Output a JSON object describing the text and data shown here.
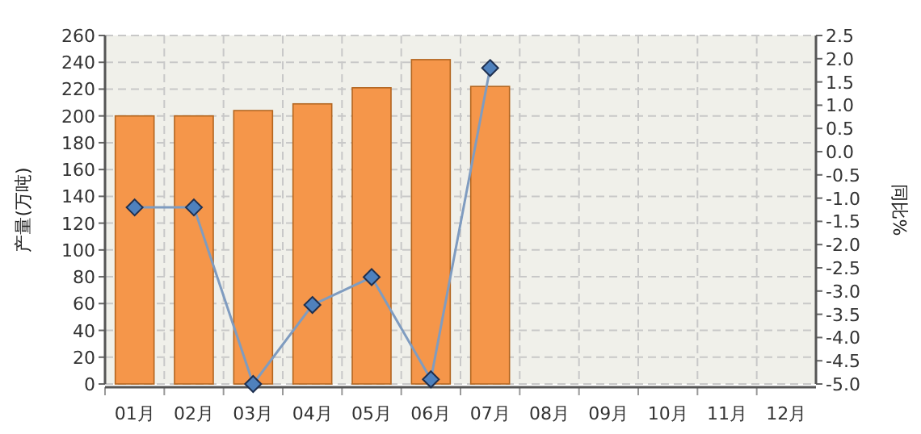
{
  "chart_data": {
    "type": "bar",
    "ylabel": "产量(万吨)",
    "y2label": "同比%",
    "categories": [
      "01月",
      "02月",
      "03月",
      "04月",
      "05月",
      "06月",
      "07月",
      "08月",
      "09月",
      "10月",
      "11月",
      "12月"
    ],
    "series": [
      {
        "color": "#f5964a",
        "values": [
          200,
          200,
          204,
          209,
          221,
          242,
          222,
          null,
          null,
          null,
          null,
          null
        ]
      },
      {
        "type": "line",
        "axis": "y2",
        "color": "#7f9cc0",
        "marker": "diamond",
        "values": [
          -1.2,
          -1.2,
          -5.0,
          -3.3,
          -2.7,
          -4.9,
          1.8,
          null,
          null,
          null,
          null,
          null
        ]
      }
    ],
    "ylim": [
      0,
      260
    ],
    "yticks": [
      0,
      20,
      40,
      60,
      80,
      100,
      120,
      140,
      160,
      180,
      200,
      220,
      240,
      260
    ],
    "y2lim": [
      -5,
      2.5
    ],
    "y2ticks": [
      {
        "value": 2.5,
        "label": "2.5"
      },
      {
        "value": 2.0,
        "label": "2.0"
      },
      {
        "value": 1.5,
        "label": "1.5"
      },
      {
        "value": 1.0,
        "label": "1.0"
      },
      {
        "value": 0.5,
        "label": "0.5"
      },
      {
        "value": 0,
        "label": "0.0"
      },
      {
        "value": -0.5,
        "label": "-0.5"
      },
      {
        "value": -1.0,
        "label": "-1.0"
      },
      {
        "value": -1.5,
        "label": "-1.5"
      },
      {
        "value": -2.0,
        "label": "-2.0"
      },
      {
        "value": -2.5,
        "label": "-2.5"
      },
      {
        "value": -3.0,
        "label": "-3.0"
      },
      {
        "value": -3.5,
        "label": "-3.5"
      },
      {
        "value": -4.0,
        "label": "-4.0"
      },
      {
        "value": -4.5,
        "label": "-4.5"
      },
      {
        "value": -5.0,
        "label": "-5.0"
      }
    ],
    "grid": true
  }
}
